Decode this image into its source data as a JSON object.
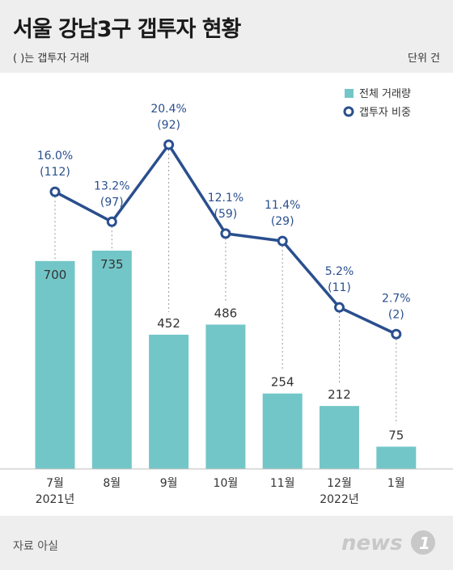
{
  "header": {
    "title": "서울 강남3구 갭투자 현황",
    "subnote": "( )는 갭투자 거래",
    "unit": "단위 건"
  },
  "footer": {
    "source": "자료 아실",
    "logo_text": "news",
    "logo_number": "1"
  },
  "colors": {
    "bar": "#73c6c8",
    "line": "#2a4f8e",
    "label_blue": "#2a4f8e",
    "text": "#333333"
  },
  "chart_data": {
    "type": "bar+line",
    "categories": [
      "7월",
      "8월",
      "9월",
      "10월",
      "11월",
      "12월",
      "1월"
    ],
    "category_sublabels": [
      "2021년",
      "",
      "",
      "",
      "",
      "2022년",
      ""
    ],
    "series": [
      {
        "name": "전체 거래량",
        "type": "bar",
        "values": [
          700,
          735,
          452,
          486,
          254,
          212,
          75
        ]
      },
      {
        "name": "갭투자 비중",
        "type": "line",
        "values": [
          16.0,
          13.2,
          20.4,
          12.1,
          11.4,
          5.2,
          2.7
        ],
        "labels": [
          "16.0%",
          "13.2%",
          "20.4%",
          "12.1%",
          "11.4%",
          "5.2%",
          "2.7%"
        ],
        "gap_counts": [
          "(112)",
          "(97)",
          "(92)",
          "(59)",
          "(29)",
          "(11)",
          "(2)"
        ]
      }
    ],
    "legend": {
      "position": "top-right",
      "entries": [
        "전체 거래량",
        "갭투자 비중"
      ]
    },
    "bar_ylim": [
      0,
      800
    ],
    "line_ylim": [
      0,
      20.4
    ],
    "grid": false
  }
}
